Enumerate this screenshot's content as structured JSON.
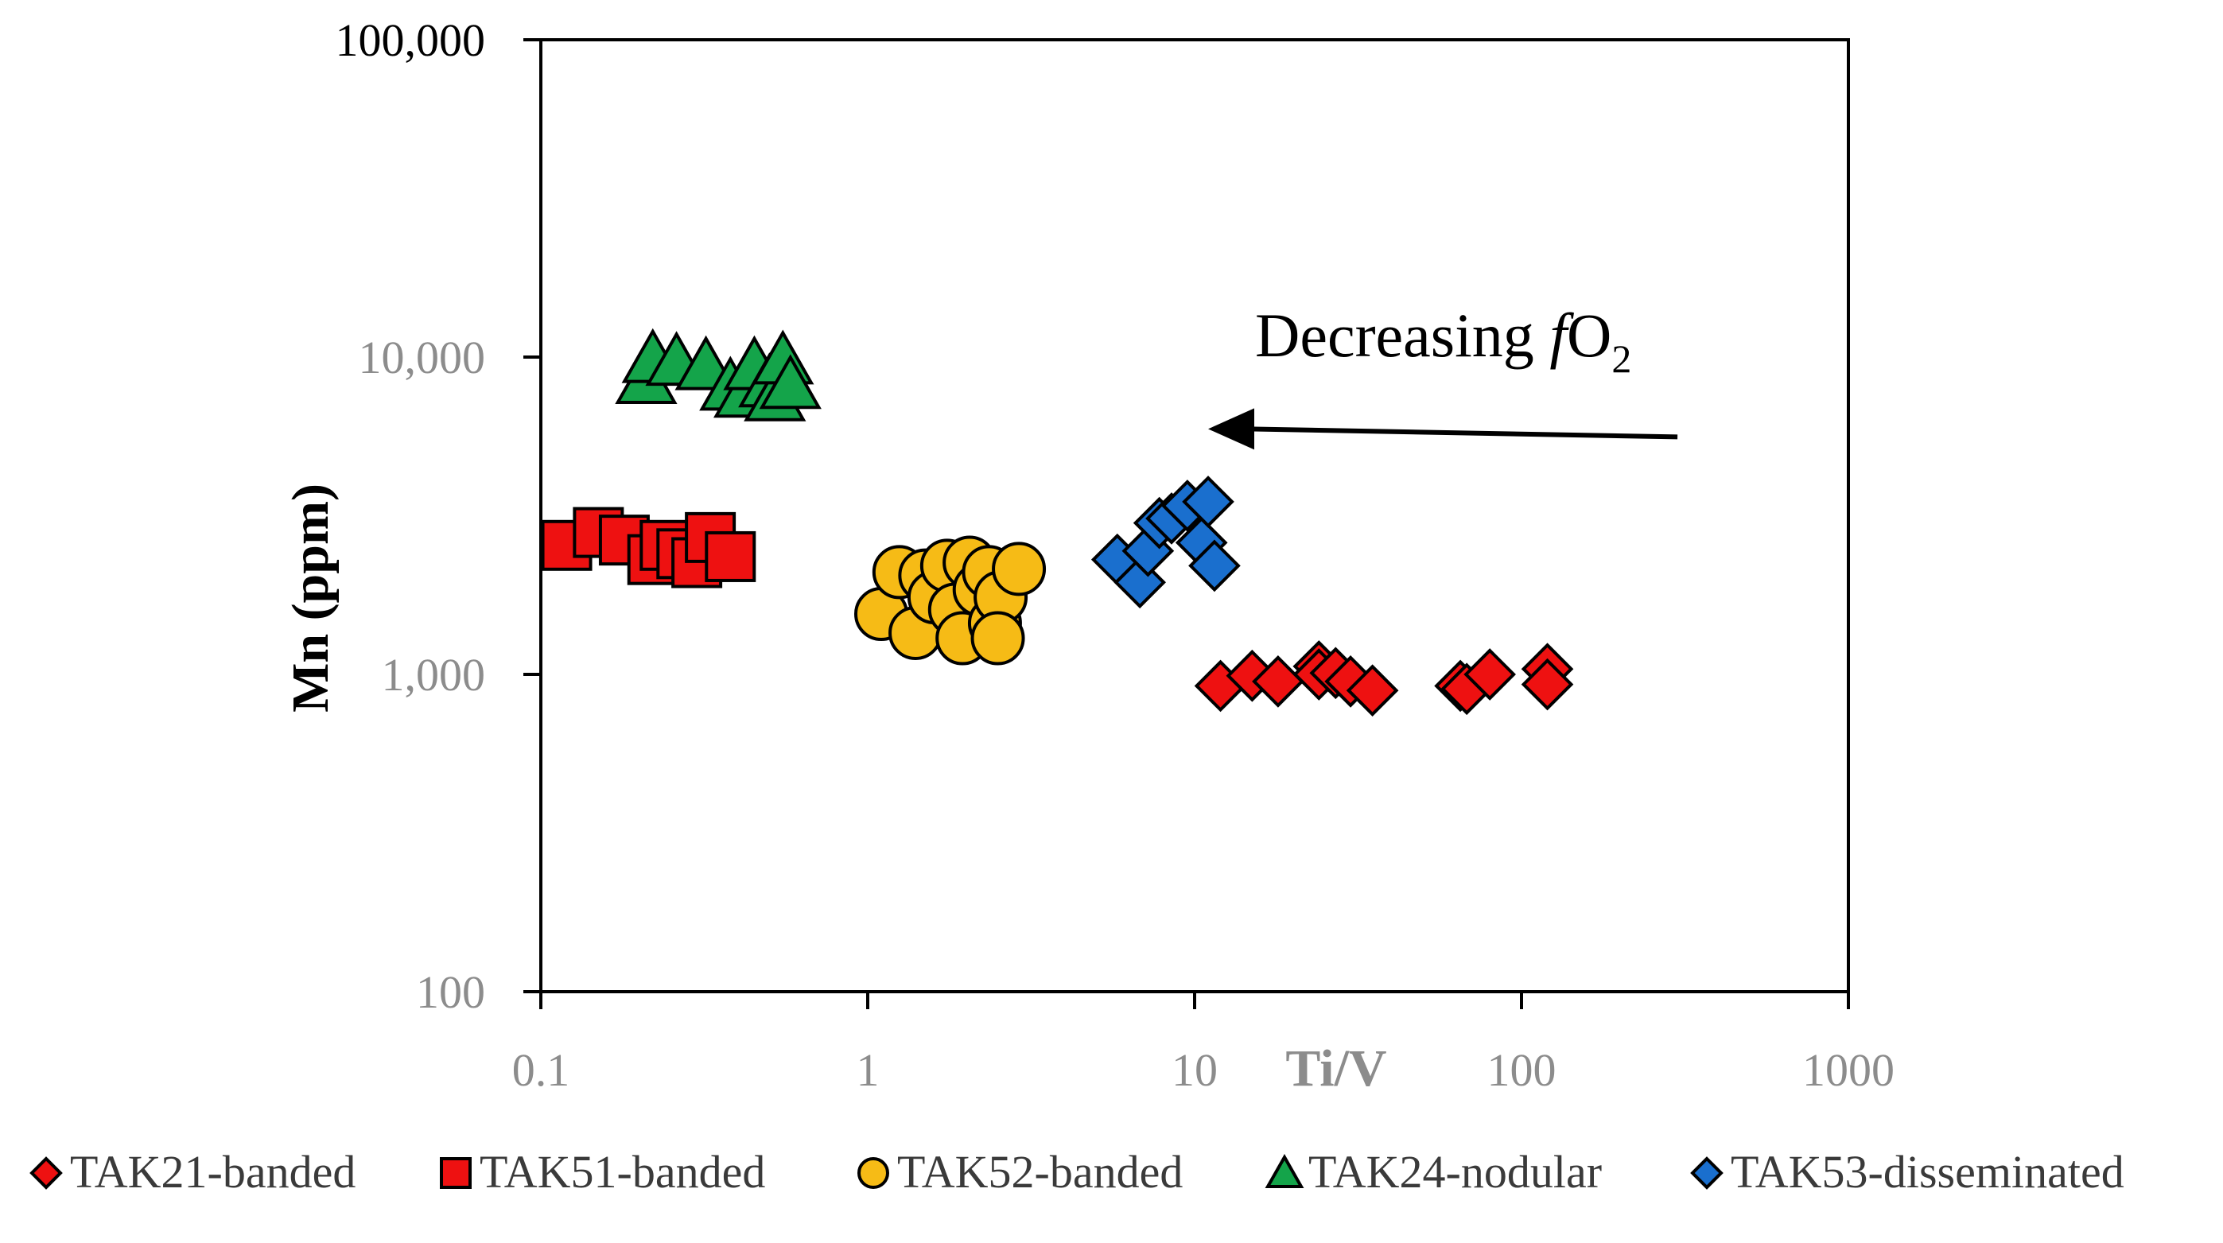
{
  "chart_data": {
    "type": "scatter",
    "title": "",
    "xlabel": "Ti/V",
    "ylabel": "Mn (ppm)",
    "xscale": "log",
    "yscale": "log",
    "xlim": [
      0.1,
      1000
    ],
    "ylim": [
      100,
      100000
    ],
    "x_ticks": [
      "0.1",
      "1",
      "10",
      "100",
      "1000"
    ],
    "y_ticks": [
      "100",
      "1,000",
      "10,000",
      "100,000"
    ],
    "grid": false,
    "legend_position": "bottom",
    "annotation": {
      "text_main": "Decreasing ",
      "text_italic": "f",
      "text_o": "O",
      "text_sub": "2",
      "arrow_from": [
        300,
        5800
      ],
      "arrow_to": [
        11,
        5800
      ]
    },
    "series": [
      {
        "name": "TAK21-banded",
        "marker": "diamond",
        "color": "#ee1111",
        "points": [
          [
            12,
            920
          ],
          [
            15,
            990
          ],
          [
            18,
            950
          ],
          [
            24,
            1060
          ],
          [
            24,
            1000
          ],
          [
            27,
            1010
          ],
          [
            30,
            950
          ],
          [
            35,
            890
          ],
          [
            65,
            920
          ],
          [
            68,
            900
          ],
          [
            80,
            1000
          ],
          [
            120,
            1040
          ],
          [
            120,
            930
          ]
        ]
      },
      {
        "name": "TAK51-banded",
        "marker": "square",
        "color": "#ee1111",
        "points": [
          [
            0.12,
            2550
          ],
          [
            0.15,
            2800
          ],
          [
            0.18,
            2650
          ],
          [
            0.22,
            2300
          ],
          [
            0.24,
            2550
          ],
          [
            0.27,
            2400
          ],
          [
            0.3,
            2250
          ],
          [
            0.33,
            2700
          ],
          [
            0.38,
            2350
          ]
        ]
      },
      {
        "name": "TAK52-banded",
        "marker": "circle",
        "color": "#f6bb16",
        "points": [
          [
            1.1,
            1550
          ],
          [
            1.25,
            2100
          ],
          [
            1.4,
            1350
          ],
          [
            1.5,
            2050
          ],
          [
            1.6,
            1750
          ],
          [
            1.75,
            2200
          ],
          [
            1.85,
            1600
          ],
          [
            1.95,
            1300
          ],
          [
            2.05,
            2250
          ],
          [
            2.2,
            1850
          ],
          [
            2.35,
            2100
          ],
          [
            2.45,
            1450
          ],
          [
            2.55,
            1750
          ],
          [
            2.5,
            1300
          ],
          [
            2.9,
            2150
          ]
        ]
      },
      {
        "name": "TAK24-nodular",
        "marker": "triangle",
        "color": "#14a44a",
        "points": [
          [
            0.21,
            8500
          ],
          [
            0.22,
            9900
          ],
          [
            0.26,
            9700
          ],
          [
            0.32,
            9400
          ],
          [
            0.38,
            8100
          ],
          [
            0.42,
            7700
          ],
          [
            0.45,
            9400
          ],
          [
            0.5,
            8300
          ],
          [
            0.52,
            7500
          ],
          [
            0.55,
            9800
          ],
          [
            0.58,
            8200
          ]
        ]
      },
      {
        "name": "TAK53-disseminated",
        "marker": "diamond",
        "color": "#1a6fce",
        "points": [
          [
            5.8,
            2300
          ],
          [
            6.8,
            1950
          ],
          [
            7.2,
            2450
          ],
          [
            7.8,
            3000
          ],
          [
            8.5,
            3100
          ],
          [
            9.5,
            3400
          ],
          [
            10.5,
            2600
          ],
          [
            11,
            3500
          ],
          [
            11.5,
            2200
          ]
        ]
      }
    ]
  }
}
